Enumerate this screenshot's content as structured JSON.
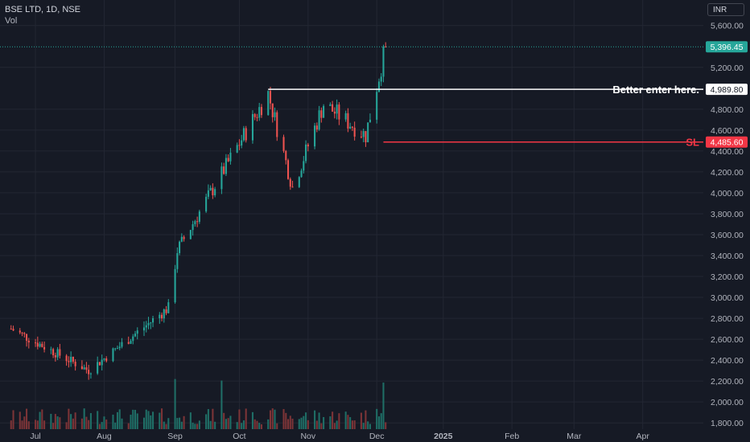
{
  "legend": {
    "symbol": "BSE LTD, 1D, NSE",
    "volume_label": "Vol"
  },
  "currency": "INR",
  "colors": {
    "up": "#26a69a",
    "down": "#ef5350",
    "background": "#161a25",
    "grid": "#232733",
    "text": "#b2b5be",
    "resistance": "#ffffff",
    "stop": "#f23645",
    "volume_up": "#1f6e66",
    "volume_down": "#7c3437"
  },
  "annotations": [
    {
      "text": "Better enter here.",
      "price": 4989.8,
      "price_label": "4,989.80",
      "color": "#ffffff"
    },
    {
      "text": "SL",
      "price": 4485.6,
      "price_label": "4,485.60",
      "color": "#f23645"
    }
  ],
  "last_price": {
    "value": 5396.45,
    "label": "5,396.45"
  },
  "chart_data": {
    "type": "candlestick",
    "title": "BSE LTD, 1D, NSE",
    "y_axis": {
      "ticks": [
        1800,
        2000,
        2200,
        2400,
        2600,
        2800,
        3000,
        3200,
        3400,
        3600,
        3800,
        4000,
        4200,
        4400,
        4600,
        4800,
        5200,
        5600
      ],
      "tick_labels": [
        "1,800.00",
        "2,000.00",
        "2,200.00",
        "2,400.00",
        "2,600.00",
        "2,800.00",
        "3,000.00",
        "3,200.00",
        "3,400.00",
        "3,600.00",
        "3,800.00",
        "4,000.00",
        "4,200.00",
        "4,400.00",
        "4,600.00",
        "4,800.00",
        "5,200.00",
        "5,600.00"
      ],
      "range": [
        1740,
        5690
      ]
    },
    "x_axis": {
      "labels": [
        {
          "text": "Jul",
          "date": "2024-07-01"
        },
        {
          "text": "Aug",
          "date": "2024-08-01"
        },
        {
          "text": "Sep",
          "date": "2024-09-02"
        },
        {
          "text": "Oct",
          "date": "2024-10-01"
        },
        {
          "text": "Nov",
          "date": "2024-11-01"
        },
        {
          "text": "Dec",
          "date": "2024-12-02"
        },
        {
          "text": "2025",
          "date": "2025-01-01"
        },
        {
          "text": "Feb",
          "date": "2025-02-01"
        },
        {
          "text": "Mar",
          "date": "2025-03-01"
        },
        {
          "text": "Apr",
          "date": "2025-04-01"
        }
      ]
    },
    "key_points": [
      {
        "date": "2024-06-20",
        "close": 2700
      },
      {
        "date": "2024-07-25",
        "close": 2300
      },
      {
        "date": "2024-08-30",
        "close": 2900
      },
      {
        "date": "2024-09-03",
        "close": 3450
      },
      {
        "date": "2024-10-14",
        "close": 4950
      },
      {
        "date": "2024-10-25",
        "close": 4050
      },
      {
        "date": "2024-11-08",
        "close": 4850
      },
      {
        "date": "2024-11-27",
        "close": 4550
      },
      {
        "date": "2024-12-06",
        "close": 5396.45
      }
    ],
    "levels": [
      {
        "label": "Better enter here.",
        "value": 4989.8
      },
      {
        "label": "SL",
        "value": 4485.6
      }
    ]
  }
}
